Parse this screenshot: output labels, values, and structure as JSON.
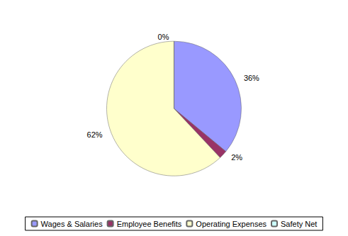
{
  "chart_data": {
    "type": "pie",
    "categories": [
      "Wages & Salaries",
      "Employee Benefits",
      "Operating Expenses",
      "Safety Net"
    ],
    "values": [
      36,
      2,
      62,
      0
    ],
    "value_labels": [
      "36%",
      "2%",
      "62%",
      "0%"
    ],
    "colors": [
      "#9999ff",
      "#993366",
      "#ffffcc",
      "#ccffff"
    ],
    "data_labels": true,
    "legend": "bottom"
  }
}
